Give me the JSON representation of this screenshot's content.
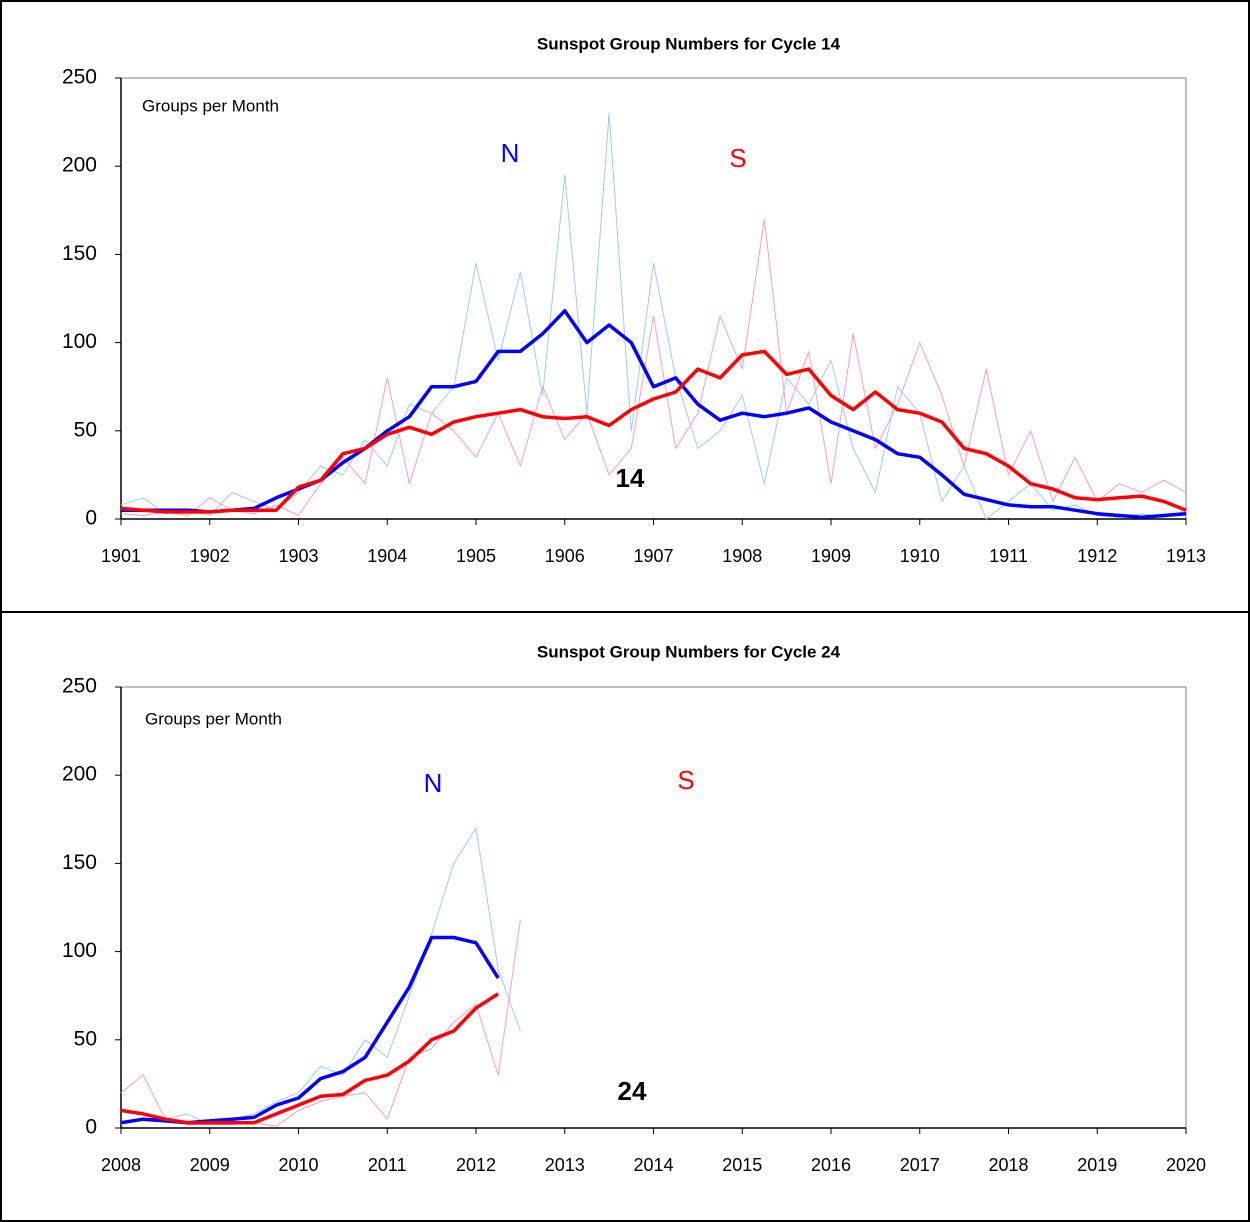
{
  "chart_data": [
    {
      "type": "line",
      "title": "Sunspot Group Numbers for Cycle 14",
      "x": [
        1901,
        1901.25,
        1901.5,
        1901.75,
        1902,
        1902.25,
        1902.5,
        1902.75,
        1903,
        1903.25,
        1903.5,
        1903.75,
        1904,
        1904.25,
        1904.5,
        1904.75,
        1905,
        1905.25,
        1905.5,
        1905.75,
        1906,
        1906.25,
        1906.5,
        1906.75,
        1907,
        1907.25,
        1907.5,
        1907.75,
        1908,
        1908.25,
        1908.5,
        1908.75,
        1909,
        1909.25,
        1909.5,
        1909.75,
        1910,
        1910.25,
        1910.5,
        1910.75,
        1911,
        1911.25,
        1911.5,
        1911.75,
        1912,
        1912.25,
        1912.5,
        1912.75,
        1913
      ],
      "xlim": [
        1901,
        1913
      ],
      "xticks": [
        1901,
        1902,
        1903,
        1904,
        1905,
        1906,
        1907,
        1908,
        1909,
        1910,
        1911,
        1912,
        1913
      ],
      "ylim": [
        0,
        250
      ],
      "yticks": [
        0,
        50,
        100,
        150,
        200,
        250
      ],
      "series": [
        {
          "color": "#99ccff",
          "width": 1,
          "values": [
            8,
            12,
            3,
            5,
            2,
            15,
            10,
            5,
            15,
            30,
            25,
            45,
            30,
            65,
            60,
            75,
            145,
            90,
            140,
            70,
            195,
            60,
            230,
            50,
            145,
            80,
            40,
            50,
            70,
            20,
            80,
            65,
            90,
            40,
            15,
            75,
            60,
            10,
            30,
            0,
            10,
            20,
            5,
            8,
            2,
            1,
            3,
            1,
            5
          ]
        },
        {
          "color": "#ff99cc",
          "width": 1,
          "values": [
            3,
            2,
            4,
            2,
            12,
            5,
            3,
            8,
            2,
            20,
            35,
            20,
            80,
            20,
            60,
            50,
            35,
            60,
            30,
            75,
            45,
            60,
            25,
            40,
            115,
            40,
            60,
            115,
            85,
            170,
            60,
            95,
            20,
            105,
            40,
            65,
            100,
            70,
            30,
            85,
            25,
            50,
            10,
            35,
            10,
            20,
            15,
            22,
            15
          ]
        },
        {
          "color": "#0000ff",
          "width": 3.5,
          "values": [
            5,
            5,
            5,
            5,
            4,
            5,
            6,
            12,
            17,
            22,
            32,
            40,
            50,
            58,
            75,
            75,
            78,
            95,
            95,
            105,
            118,
            100,
            110,
            100,
            75,
            80,
            65,
            56,
            60,
            58,
            60,
            63,
            55,
            50,
            45,
            37,
            35,
            25,
            14,
            11,
            8,
            7,
            7,
            5,
            3,
            2,
            1,
            2,
            3
          ]
        },
        {
          "color": "#ff0000",
          "width": 3.5,
          "values": [
            6,
            5,
            4,
            4,
            4,
            5,
            5,
            5,
            18,
            22,
            37,
            40,
            48,
            52,
            48,
            55,
            58,
            60,
            62,
            58,
            57,
            58,
            53,
            62,
            68,
            72,
            85,
            80,
            93,
            95,
            82,
            85,
            70,
            62,
            72,
            62,
            60,
            55,
            40,
            37,
            30,
            20,
            17,
            12,
            11,
            12,
            13,
            10,
            5
          ]
        }
      ],
      "annotations": [
        {
          "text": "Groups per Month",
          "color": "#000000"
        },
        {
          "text": "N",
          "color": "#0000ff"
        },
        {
          "text": "S",
          "color": "#ff0000"
        },
        {
          "text": "14",
          "color": "#000000"
        }
      ]
    },
    {
      "type": "line",
      "title": "Sunspot Group Numbers for Cycle 24",
      "x": [
        2008,
        2008.25,
        2008.5,
        2008.75,
        2009,
        2009.25,
        2009.5,
        2009.75,
        2010,
        2010.25,
        2010.5,
        2010.75,
        2011,
        2011.25,
        2011.5,
        2011.75,
        2012,
        2012.25,
        2012.5
      ],
      "xlim": [
        2008,
        2020
      ],
      "xticks": [
        2008,
        2009,
        2010,
        2011,
        2012,
        2013,
        2014,
        2015,
        2016,
        2017,
        2018,
        2019,
        2020
      ],
      "ylim": [
        0,
        250
      ],
      "yticks": [
        0,
        50,
        100,
        150,
        200,
        250
      ],
      "series": [
        {
          "color": "#99ccff",
          "width": 1,
          "values": [
            2,
            5,
            5,
            8,
            2,
            5,
            8,
            15,
            20,
            35,
            30,
            50,
            40,
            75,
            110,
            150,
            170,
            90,
            55
          ]
        },
        {
          "color": "#ff99cc",
          "width": 1,
          "values": [
            20,
            30,
            5,
            2,
            2,
            2,
            3,
            1,
            10,
            15,
            18,
            20,
            5,
            40,
            45,
            60,
            70,
            30,
            118
          ]
        },
        {
          "color": "#0000ff",
          "width": 3.5,
          "values": [
            3,
            5,
            4,
            3,
            4,
            5,
            6,
            13,
            17,
            28,
            32,
            40,
            60,
            80,
            108,
            108,
            105,
            85,
            null
          ]
        },
        {
          "color": "#ff0000",
          "width": 3.5,
          "values": [
            10,
            8,
            5,
            3,
            3,
            3,
            3,
            8,
            13,
            18,
            19,
            27,
            30,
            38,
            50,
            55,
            68,
            76,
            null
          ]
        }
      ],
      "annotations": [
        {
          "text": "Groups per Month",
          "color": "#000000"
        },
        {
          "text": "N",
          "color": "#0000ff"
        },
        {
          "text": "S",
          "color": "#ff0000"
        },
        {
          "text": "24",
          "color": "#000000"
        }
      ]
    }
  ]
}
